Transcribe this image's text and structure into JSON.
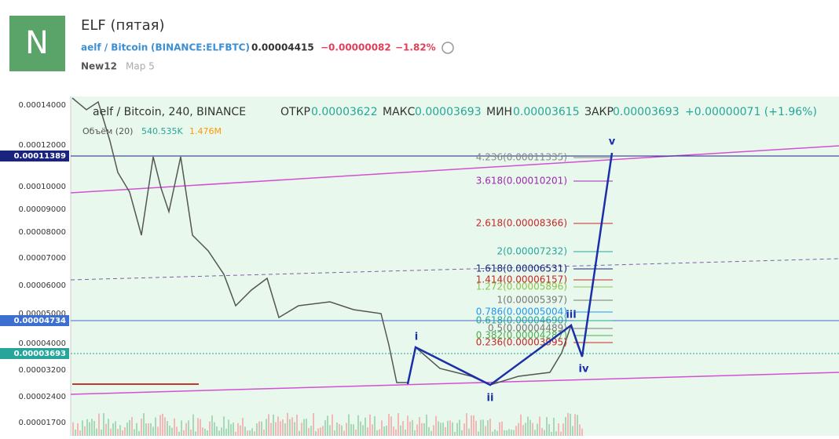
{
  "header": {
    "avatar": "N",
    "title": "ELF (пятая)",
    "symbol": "aelf / Bitcoin",
    "exchange": "(BINANCE:ELFBTC)",
    "price": "0.00004415",
    "change": "−0.00000082",
    "change_pct": "−1.82%",
    "tags": [
      "New12",
      "Мар 5"
    ]
  },
  "chart": {
    "legend": {
      "symbol": "aelf / Bitcoin, 240, BINANCE",
      "open_label": "ОТКР",
      "open": "0.00003622",
      "high_label": "МАКС",
      "high": "0.00003693",
      "low_label": "МИН",
      "low": "0.00003615",
      "close_label": "ЗАКР",
      "close": "0.00003693",
      "change": "+0.00000071 (+1.96%)"
    },
    "volume": {
      "label": "Объём (20)",
      "value": "540.535K",
      "ma": "1.476M"
    },
    "y_axis": [
      "0.00014000",
      "0.00012000",
      "0.00010000",
      "0.00009000",
      "0.00008000",
      "0.00007000",
      "0.00006000",
      "0.00005000",
      "0.00004000",
      "0.00003200",
      "0.00002400",
      "0.00001700"
    ],
    "price_tags": [
      "0.00011389",
      "0.00004734",
      "0.00003693"
    ],
    "fib_levels": [
      "4.236(0.00011335)",
      "3.618(0.00010201)",
      "2.618(0.00008366)",
      "2(0.00007232)",
      "1.618(0.00006531)",
      "1.414(0.00006157)",
      "1.272(0.00005896)",
      "1(0.00005397)",
      "0.786(0.00005004)",
      "0.618(0.00004690)",
      "0.5(0.00004489)",
      "0.382(0.00004287)",
      "0.236(0.00003995)"
    ],
    "waves": [
      "i",
      "ii",
      "iii",
      "iv",
      "v"
    ]
  }
}
